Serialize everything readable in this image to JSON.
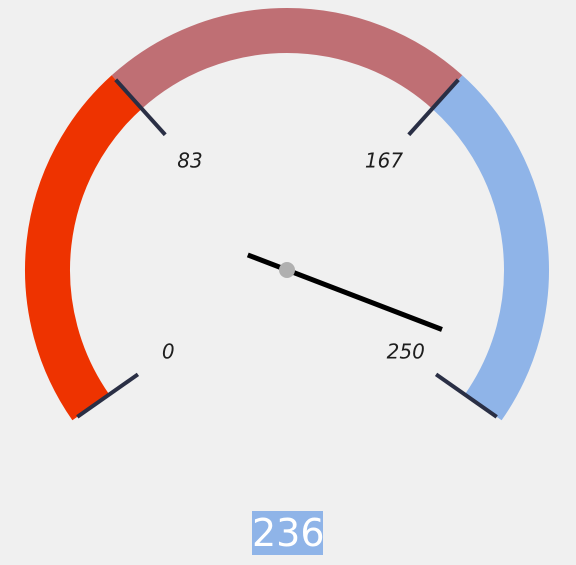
{
  "gauge": {
    "min": 0,
    "max": 250,
    "value": 236,
    "value_label": "236",
    "sweep_degrees": 250,
    "ticks": [
      {
        "value": 0,
        "label": "0"
      },
      {
        "value": 83,
        "label": "83"
      },
      {
        "value": 167,
        "label": "167"
      },
      {
        "value": 250,
        "label": "250"
      }
    ],
    "bands": [
      {
        "from": 0,
        "to": 83,
        "color": "#ee3300"
      },
      {
        "from": 83,
        "to": 167,
        "color": "#bf6f74"
      },
      {
        "from": 167,
        "to": 250,
        "color": "#8fb4e8"
      }
    ],
    "needle_color": "#000000",
    "hub_color": "#b0b0b0",
    "tick_color": "#2a2f45",
    "readout_background": "#8fb4e8",
    "readout_text_color": "#ffffff"
  }
}
